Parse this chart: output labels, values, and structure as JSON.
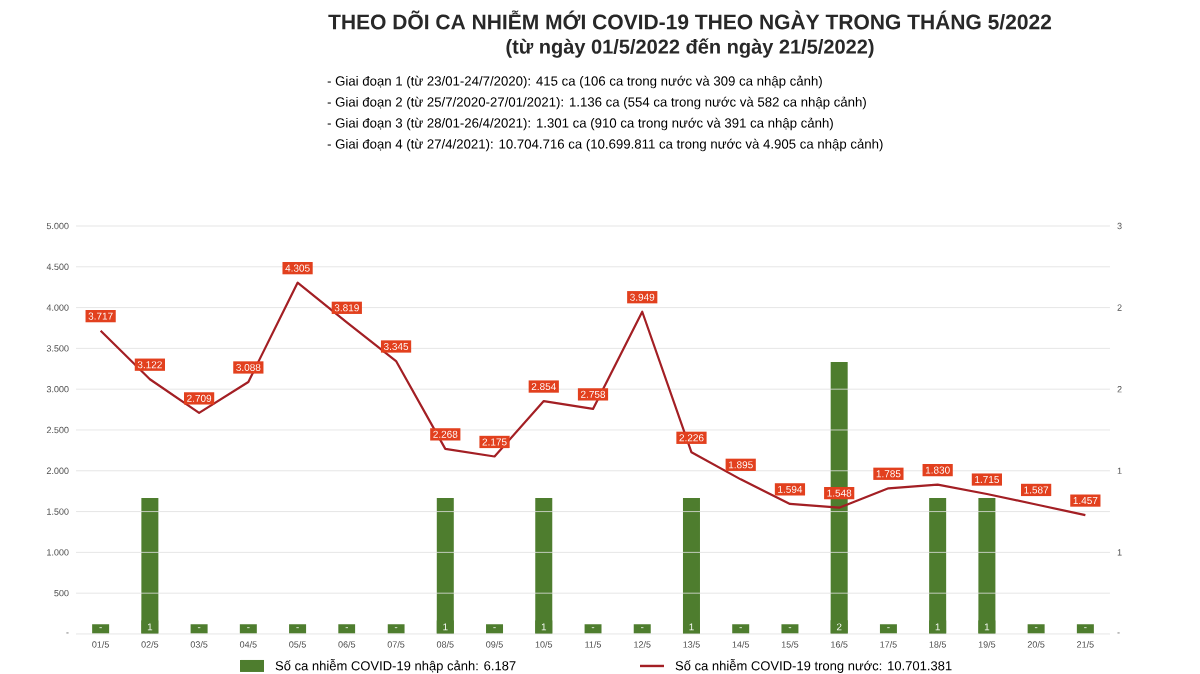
{
  "chart_data": {
    "type": "line",
    "title": "THEO DÕI CA NHIỄM MỚI COVID-19 THEO NGÀY TRONG THÁNG 5/2022",
    "subtitle": "(từ ngày 01/5/2022 đến ngày 21/5/2022)",
    "annotations": [
      "- Giai đoạn 1 (từ 23/01-24/7/2020): 415 ca (106 ca trong nước và 309 ca nhập cảnh)",
      "- Giai đoạn 2 (từ 25/7/2020-27/01/2021): 1.136 ca (554 ca trong nước và 582 ca nhập cảnh)",
      "- Giai đoạn 3 (từ 28/01-26/4/2021): 1.301 ca (910 ca trong nước và 391 ca nhập cảnh)",
      "- Giai đoạn 4 (từ 27/4/2021): 10.704.716 ca (10.699.811 ca trong nước và 4.905 ca nhập cảnh)"
    ],
    "categories": [
      "01/5",
      "02/5",
      "03/5",
      "04/5",
      "05/5",
      "06/5",
      "07/5",
      "08/5",
      "09/5",
      "10/5",
      "11/5",
      "12/5",
      "13/5",
      "14/5",
      "15/5",
      "16/5",
      "17/5",
      "18/5",
      "19/5",
      "20/5",
      "21/5"
    ],
    "series": [
      {
        "name": "Số ca nhiễm COVID-19 nhập cảnh: 6.187",
        "type": "bar",
        "axis": "y2",
        "color": "#4e7d2e",
        "values": [
          0,
          1,
          0,
          0,
          0,
          0,
          0,
          1,
          0,
          1,
          0,
          0,
          1,
          0,
          0,
          2,
          0,
          1,
          1,
          0,
          0
        ],
        "value_labels": [
          "-",
          "1",
          "-",
          "-",
          "-",
          "-",
          "-",
          "1",
          "-",
          "1",
          "-",
          "-",
          "1",
          "-",
          "-",
          "2",
          "-",
          "1",
          "1",
          "-",
          "-"
        ]
      },
      {
        "name": "Số ca nhiễm COVID-19 trong nước: 10.701.381",
        "color": "#a31f24",
        "values": [
          3717,
          3122,
          2709,
          3088,
          4305,
          3819,
          3345,
          2268,
          2175,
          2854,
          2758,
          3949,
          2226,
          1895,
          1594,
          1548,
          1785,
          1830,
          1715,
          1587,
          1457
        ],
        "value_labels": [
          "3.717",
          "3.122",
          "2.709",
          "3.088",
          "4.305",
          "3.819",
          "3.345",
          "2.268",
          "2.175",
          "2.854",
          "2.758",
          "3.949",
          "2.226",
          "1.895",
          "1.594",
          "1.548",
          "1.785",
          "1.830",
          "1.715",
          "1.587",
          "1.457"
        ]
      }
    ],
    "ylim": [
      0,
      5000
    ],
    "yticks": [
      {
        "value": 0,
        "label": "-"
      },
      {
        "value": 500,
        "label": "500"
      },
      {
        "value": 1000,
        "label": "1.000"
      },
      {
        "value": 1500,
        "label": "1.500"
      },
      {
        "value": 2000,
        "label": "2.000"
      },
      {
        "value": 2500,
        "label": "2.500"
      },
      {
        "value": 3000,
        "label": "3.000"
      },
      {
        "value": 3500,
        "label": "3.500"
      },
      {
        "value": 4000,
        "label": "4.000"
      },
      {
        "value": 4500,
        "label": "4.500"
      },
      {
        "value": 5000,
        "label": "5.000"
      }
    ],
    "y2lim": [
      0,
      3
    ],
    "y2ticks": [
      {
        "value": 0,
        "label": "-"
      },
      {
        "value": 0.6,
        "label": "1"
      },
      {
        "value": 1.2,
        "label": "1"
      },
      {
        "value": 1.8,
        "label": "2"
      },
      {
        "value": 2.4,
        "label": "2"
      },
      {
        "value": 3,
        "label": "3"
      }
    ],
    "grid": "y",
    "legend": "bottom",
    "marker": "none",
    "line_style": "solid"
  }
}
